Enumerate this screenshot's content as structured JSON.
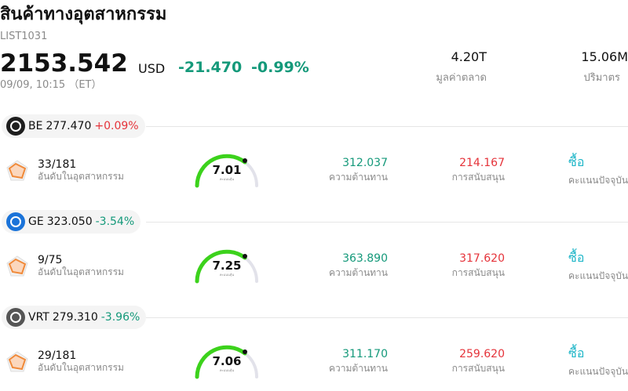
{
  "header": {
    "title": "สินค้าทางอุตสาหกรรม",
    "code": "LIST1031",
    "price": "2153.542",
    "currency": "USD",
    "change": "-21.470",
    "change_percent": "-0.99%",
    "direction": "down",
    "time": "09/09, 10:15 （ET）",
    "stats": [
      {
        "value": "4.20T",
        "label": "มูลค่าตลาด"
      },
      {
        "value": "15.06M",
        "label": "ปริมาตร"
      }
    ]
  },
  "stocks": [
    {
      "ticker": "BE",
      "price": "277.470",
      "change_percent": "+0.09%",
      "direction": "up",
      "rank": "33/181",
      "rank_label": "อันดับในอุตสาหกรรม",
      "score": "7.01",
      "score_label": "คะแนนหุ้น",
      "resistance": "312.037",
      "resistance_label": "ความต้านทาน",
      "support": "214.167",
      "support_label": "การสนับสนุน",
      "rating": "ซื้อ",
      "rating_label": "คะแนนปัจจุบัน"
    },
    {
      "ticker": "GE",
      "price": "323.050",
      "change_percent": "-3.54%",
      "direction": "down",
      "rank": "9/75",
      "rank_label": "อันดับในอุตสาหกรรม",
      "score": "7.25",
      "score_label": "คะแนนหุ้น",
      "resistance": "363.890",
      "resistance_label": "ความต้านทาน",
      "support": "317.620",
      "support_label": "การสนับสนุน",
      "rating": "ซื้อ",
      "rating_label": "คะแนนปัจจุบัน"
    },
    {
      "ticker": "VRT",
      "price": "279.310",
      "change_percent": "-3.96%",
      "direction": "down",
      "rank": "29/181",
      "rank_label": "อันดับในอุตสาหกรรม",
      "score": "7.06",
      "score_label": "คะแนนหุ้น",
      "resistance": "311.170",
      "resistance_label": "ความต้านทาน",
      "support": "259.620",
      "support_label": "การสนับสนุน",
      "rating": "ซื้อ",
      "rating_label": "คะแนนปัจจุบัน"
    }
  ]
}
